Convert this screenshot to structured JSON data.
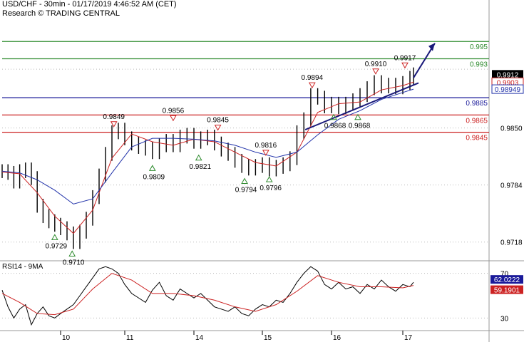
{
  "header": {
    "title": "USD/CHF - 30min - 01/17/2019 4:46:52 AM (CET)",
    "research": "Research © TRADING CENTRAL"
  },
  "colors": {
    "price": "#000000",
    "ma_fast": "#cc2222",
    "ma_slow": "#2233aa",
    "target": "#2e8b2e",
    "pivot": "#1a1a9a",
    "support": "#cc2222",
    "trendline": "#1a1a7a",
    "current_label_bg": "#000000",
    "rsi_value_bg": "#1a1a9a",
    "rsi_ma_bg": "#cc2222",
    "up_marker": "#2e8b2e",
    "down_marker": "#cc2222"
  },
  "chart_data": [
    {
      "type": "candlestick",
      "title": "USD/CHF - 30min - 01/17/2019 4:46:52 AM (CET)",
      "x_tick_labels": [
        "10",
        "11",
        "14",
        "15",
        "16",
        "17"
      ],
      "y_tick_labels": [
        "0.9718",
        "0.9784",
        "0.9850"
      ],
      "ylim": [
        0.9698,
        0.9998
      ],
      "grid": "dotted horizontal",
      "levels": [
        {
          "label": "0.995",
          "value": 0.995,
          "role": "target"
        },
        {
          "label": "0.993",
          "value": 0.993,
          "role": "target"
        },
        {
          "label": "0.9885",
          "value": 0.9885,
          "role": "pivot"
        },
        {
          "label": "0.9865",
          "value": 0.9865,
          "role": "support"
        },
        {
          "label": "0.9845",
          "value": 0.9845,
          "role": "support"
        }
      ],
      "price_labels": [
        {
          "label": "0.9912",
          "value": 0.9912,
          "style": "current"
        },
        {
          "label": "0.9903",
          "value": 0.9903,
          "style": "ma_fast"
        },
        {
          "label": "0.98949",
          "value": 0.98949,
          "style": "ma_slow"
        }
      ],
      "markers": [
        {
          "label": "0.9729",
          "x": 0.9,
          "value": 0.9729,
          "kind": "low"
        },
        {
          "label": "0.9710",
          "x": 1.18,
          "value": 0.971,
          "kind": "low"
        },
        {
          "label": "0.9849",
          "x": 1.83,
          "value": 0.9849,
          "kind": "high"
        },
        {
          "label": "0.9809",
          "x": 2.4,
          "value": 0.9809,
          "kind": "low"
        },
        {
          "label": "0.9856",
          "x": 2.7,
          "value": 0.9856,
          "kind": "high"
        },
        {
          "label": "0.9821",
          "x": 3.07,
          "value": 0.9821,
          "kind": "low"
        },
        {
          "label": "0.9845",
          "x": 3.35,
          "value": 0.9845,
          "kind": "high"
        },
        {
          "label": "0.9794",
          "x": 3.74,
          "value": 0.9794,
          "kind": "low"
        },
        {
          "label": "0.9816",
          "x": 4.05,
          "value": 0.9816,
          "kind": "high"
        },
        {
          "label": "0.9796",
          "x": 4.1,
          "value": 0.9796,
          "kind": "low"
        },
        {
          "label": "0.9894",
          "x": 4.72,
          "value": 0.9894,
          "kind": "high"
        },
        {
          "label": "0.9868",
          "x": 5.03,
          "value": 0.9868,
          "kind": "low"
        },
        {
          "label": "0.9868",
          "x": 5.37,
          "value": 0.9868,
          "kind": "low"
        },
        {
          "label": "0.9910",
          "x": 5.62,
          "value": 0.991,
          "kind": "high"
        },
        {
          "label": "0.9917",
          "x": 6.03,
          "value": 0.9917,
          "kind": "high"
        }
      ],
      "trendline": {
        "points": [
          [
            4.62,
            0.9848
          ],
          [
            6.22,
            0.9902
          ]
        ]
      },
      "projection": {
        "points": [
          [
            6.15,
            0.9908
          ],
          [
            6.45,
            0.9948
          ]
        ]
      },
      "series": [
        {
          "name": "price",
          "style": "ohlc",
          "x": [
            0.0,
            0.1,
            0.2,
            0.3,
            0.4,
            0.5,
            0.6,
            0.7,
            0.8,
            0.9,
            1.0,
            1.1,
            1.2,
            1.3,
            1.4,
            1.5,
            1.6,
            1.7,
            1.8,
            1.9,
            2.0,
            2.1,
            2.2,
            2.3,
            2.4,
            2.5,
            2.6,
            2.7,
            2.8,
            2.9,
            3.0,
            3.1,
            3.2,
            3.3,
            3.4,
            3.5,
            3.6,
            3.7,
            3.8,
            3.9,
            4.0,
            4.1,
            4.2,
            4.3,
            4.4,
            4.5,
            4.6,
            4.7,
            4.8,
            4.9,
            5.0,
            5.1,
            5.2,
            5.3,
            5.4,
            5.5,
            5.6,
            5.7,
            5.8,
            5.9,
            6.0,
            6.1,
            6.15
          ],
          "values": [
            0.98,
            0.9798,
            0.9788,
            0.98,
            0.9802,
            0.9792,
            0.976,
            0.9748,
            0.9742,
            0.9738,
            0.9734,
            0.9728,
            0.9718,
            0.973,
            0.9745,
            0.977,
            0.9795,
            0.982,
            0.9845,
            0.9848,
            0.9838,
            0.9832,
            0.9828,
            0.9826,
            0.9822,
            0.983,
            0.9835,
            0.983,
            0.984,
            0.9842,
            0.9834,
            0.9838,
            0.984,
            0.9832,
            0.9825,
            0.982,
            0.9812,
            0.9806,
            0.9803,
            0.9806,
            0.9808,
            0.9802,
            0.9805,
            0.9808,
            0.9815,
            0.9845,
            0.986,
            0.9888,
            0.9885,
            0.9875,
            0.9878,
            0.9874,
            0.9878,
            0.9882,
            0.9888,
            0.9896,
            0.9903,
            0.9898,
            0.99,
            0.9897,
            0.9902,
            0.9908,
            0.9912
          ]
        },
        {
          "name": "ma_fast",
          "x": [
            0.0,
            0.3,
            0.6,
            0.9,
            1.2,
            1.5,
            1.8,
            2.1,
            2.4,
            2.7,
            3.0,
            3.3,
            3.6,
            3.9,
            4.2,
            4.5,
            4.8,
            5.1,
            5.4,
            5.7,
            6.0,
            6.15
          ],
          "values": [
            0.9799,
            0.9797,
            0.9775,
            0.9748,
            0.9728,
            0.9755,
            0.9815,
            0.9843,
            0.9834,
            0.983,
            0.9837,
            0.9834,
            0.9822,
            0.981,
            0.9806,
            0.9822,
            0.9868,
            0.9878,
            0.988,
            0.9894,
            0.9899,
            0.9903
          ]
        },
        {
          "name": "ma_slow",
          "x": [
            0.0,
            0.3,
            0.6,
            0.9,
            1.2,
            1.5,
            1.8,
            2.1,
            2.4,
            2.7,
            3.0,
            3.3,
            3.6,
            3.9,
            4.2,
            4.5,
            4.8,
            5.1,
            5.4,
            5.7,
            6.0,
            6.15
          ],
          "values": [
            0.98,
            0.9798,
            0.979,
            0.9778,
            0.9762,
            0.9768,
            0.9798,
            0.9828,
            0.9838,
            0.9838,
            0.9837,
            0.9835,
            0.983,
            0.9822,
            0.9816,
            0.9822,
            0.9842,
            0.986,
            0.987,
            0.9883,
            0.9891,
            0.98949
          ]
        }
      ]
    },
    {
      "type": "line",
      "title": "RSI14 - 9MA",
      "y_tick_labels": [
        "70",
        "30"
      ],
      "ylim": [
        20,
        80
      ],
      "grid": "dotted horizontal",
      "price_labels": [
        {
          "label": "62.0222",
          "value": 62.0222,
          "style": "rsi"
        },
        {
          "label": "59.1901",
          "value": 59.1901,
          "style": "rsi_ma"
        }
      ],
      "series": [
        {
          "name": "rsi",
          "x": [
            0.0,
            0.1,
            0.2,
            0.3,
            0.4,
            0.5,
            0.6,
            0.7,
            0.8,
            0.9,
            1.0,
            1.1,
            1.2,
            1.3,
            1.4,
            1.5,
            1.6,
            1.7,
            1.8,
            1.9,
            2.0,
            2.1,
            2.2,
            2.3,
            2.4,
            2.5,
            2.6,
            2.7,
            2.8,
            2.9,
            3.0,
            3.1,
            3.2,
            3.3,
            3.4,
            3.5,
            3.6,
            3.7,
            3.8,
            3.9,
            4.0,
            4.1,
            4.2,
            4.3,
            4.4,
            4.5,
            4.6,
            4.7,
            4.8,
            4.9,
            5.0,
            5.1,
            5.2,
            5.3,
            5.4,
            5.5,
            5.6,
            5.7,
            5.8,
            5.9,
            6.0,
            6.1,
            6.15
          ],
          "values": [
            55,
            40,
            30,
            38,
            42,
            24,
            34,
            40,
            32,
            30,
            34,
            38,
            42,
            50,
            58,
            66,
            74,
            76,
            74,
            70,
            60,
            52,
            48,
            44,
            55,
            62,
            50,
            46,
            56,
            52,
            48,
            52,
            46,
            40,
            38,
            36,
            40,
            34,
            32,
            38,
            42,
            40,
            46,
            44,
            52,
            62,
            70,
            76,
            72,
            60,
            56,
            62,
            56,
            58,
            52,
            60,
            56,
            64,
            58,
            54,
            60,
            58,
            62
          ]
        },
        {
          "name": "rsi_ma",
          "x": [
            0.0,
            0.3,
            0.6,
            0.9,
            1.2,
            1.5,
            1.8,
            2.1,
            2.4,
            2.7,
            3.0,
            3.3,
            3.6,
            3.9,
            4.2,
            4.5,
            4.8,
            5.1,
            5.4,
            5.7,
            6.0,
            6.15
          ],
          "values": [
            52,
            44,
            34,
            33,
            38,
            56,
            70,
            64,
            52,
            52,
            50,
            46,
            40,
            36,
            42,
            54,
            68,
            62,
            58,
            58,
            57,
            59.19
          ]
        }
      ]
    }
  ]
}
